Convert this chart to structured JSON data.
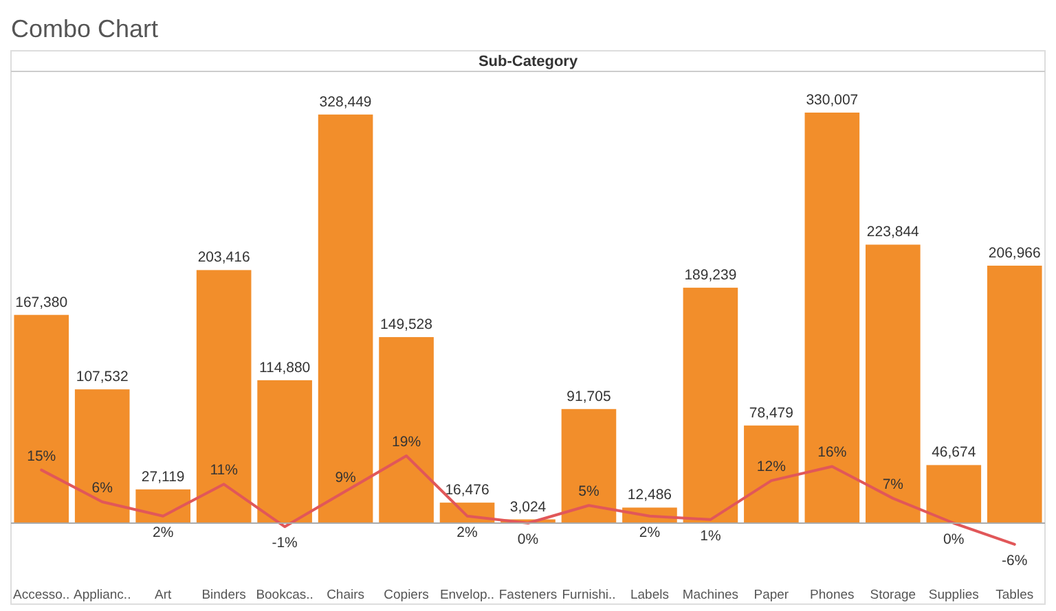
{
  "chart_data": {
    "type": "bar",
    "title": "Combo Chart",
    "xlabel": "Sub-Category",
    "categories": [
      "Accesso..",
      "Applianc..",
      "Art",
      "Binders",
      "Bookcas..",
      "Chairs",
      "Copiers",
      "Envelop..",
      "Fasteners",
      "Furnishi..",
      "Labels",
      "Machines",
      "Paper",
      "Phones",
      "Storage",
      "Supplies",
      "Tables"
    ],
    "series": [
      {
        "color": "#f28e2b",
        "values": [
          167380,
          107532,
          27119,
          203416,
          114880,
          328449,
          149528,
          16476,
          3024,
          91705,
          12486,
          189239,
          78479,
          330007,
          223844,
          46674,
          206966
        ],
        "value_labels": [
          "167,380",
          "107,532",
          "27,119",
          "203,416",
          "114,880",
          "328,449",
          "149,528",
          "16,476",
          "3,024",
          "91,705",
          "12,486",
          "189,239",
          "78,479",
          "330,007",
          "223,844",
          "46,674",
          "206,966"
        ]
      },
      {
        "type": "line",
        "axis": "y2",
        "color": "#e15759",
        "values": [
          15,
          6,
          2,
          11,
          -1,
          9,
          19,
          2,
          0,
          5,
          2,
          1,
          12,
          16,
          7,
          0,
          -6
        ],
        "value_labels": [
          "15%",
          "6%",
          "2%",
          "11%",
          "-1%",
          "9%",
          "19%",
          "2%",
          "0%",
          "5%",
          "2%",
          "1%",
          "12%",
          "16%",
          "7%",
          "0%",
          "-6%"
        ]
      }
    ],
    "data_labels": true,
    "tick_labels": "x",
    "marker": "none",
    "line_style": "solid"
  }
}
